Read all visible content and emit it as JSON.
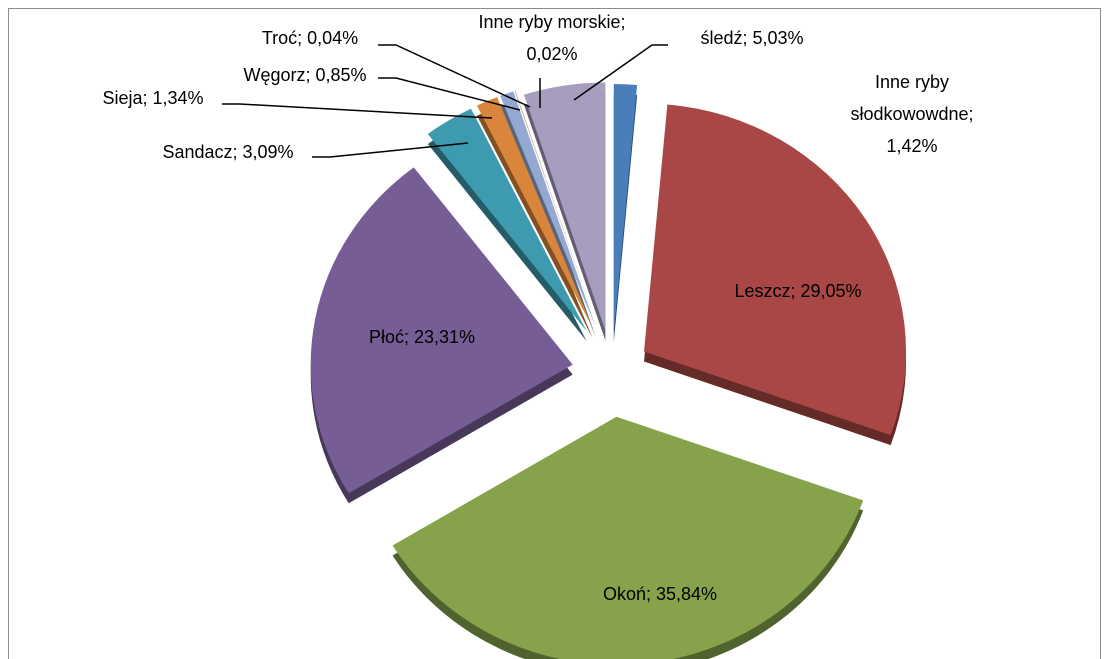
{
  "chart_data": {
    "type": "pie",
    "categories": [
      "Inne ryby słodkowowdne",
      "Leszcz",
      "Okoń",
      "Płoć",
      "Sandacz",
      "Sieja",
      "Węgorz",
      "Troć",
      "Inne ryby morskie",
      "śledź"
    ],
    "values": [
      1.42,
      29.05,
      35.84,
      23.31,
      3.09,
      1.34,
      0.85,
      0.04,
      0.02,
      5.03
    ],
    "value_labels": [
      "Inne ryby\nsłodkowowdne;\n1,42%",
      "Leszcz; 29,05%",
      "Okoń; 35,84%",
      "Płoć; 23,31%",
      "Sandacz; 3,09%",
      "Sieja; 1,34%",
      "Węgorz; 0,85%",
      "Troć; 0,04%",
      "Inne ryby morskie;\n0,02%",
      "śledź; 5,03%"
    ],
    "colors": [
      "#4a7ebb",
      "#a84745",
      "#86a34c",
      "#775d95",
      "#3e9aaf",
      "#d9853b",
      "#93a9d1",
      "#d19392",
      "#b9cd96",
      "#a79dbf"
    ]
  }
}
